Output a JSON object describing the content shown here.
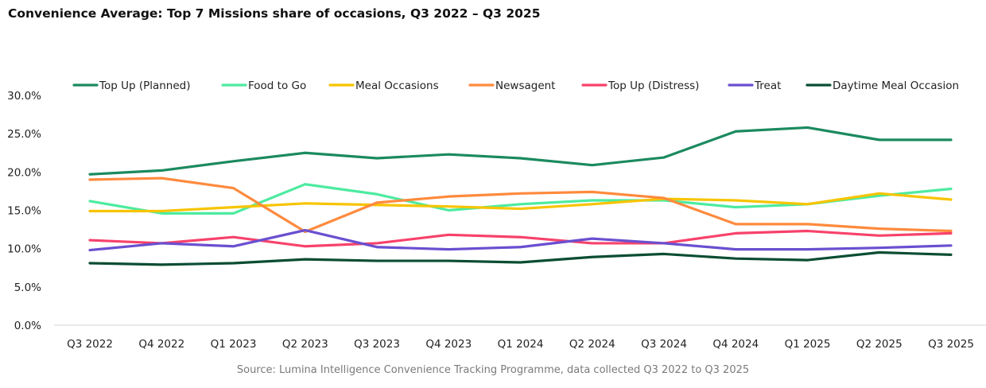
{
  "chart_data": {
    "type": "line",
    "title": "Convenience Average: Top 7 Missions share of occasions, Q3 2022 – Q3 2025",
    "source": "Source: Lumina Intelligence Convenience Tracking Programme, data collected Q3 2022 to Q3 2025",
    "xlabel": "",
    "ylabel": "",
    "ylim": [
      0,
      30
    ],
    "yticks": [
      "0.0%",
      "5.0%",
      "10.0%",
      "15.0%",
      "20.0%",
      "25.0%",
      "30.0%"
    ],
    "ytick_values": [
      0,
      5,
      10,
      15,
      20,
      25,
      30
    ],
    "grid": false,
    "legend_position": "top",
    "categories": [
      "Q3 2022",
      "Q4 2022",
      "Q1 2023",
      "Q2 2023",
      "Q3 2023",
      "Q4 2023",
      "Q1 2024",
      "Q2 2024",
      "Q3 2024",
      "Q4 2024",
      "Q1 2025",
      "Q2 2025",
      "Q3 2025"
    ],
    "series": [
      {
        "name": "Top Up (Planned)",
        "color": "#1b8a5f",
        "values": [
          19.7,
          20.2,
          21.4,
          22.5,
          21.8,
          22.3,
          21.8,
          20.9,
          21.9,
          25.3,
          25.8,
          24.2,
          24.2
        ]
      },
      {
        "name": "Food to Go",
        "color": "#4deba0",
        "values": [
          16.2,
          14.6,
          14.6,
          18.4,
          17.1,
          15.0,
          15.8,
          16.3,
          16.3,
          15.4,
          15.8,
          16.9,
          17.8
        ]
      },
      {
        "name": "Meal Occasions",
        "color": "#f7c400",
        "values": [
          14.9,
          14.9,
          15.4,
          15.9,
          15.7,
          15.5,
          15.2,
          15.8,
          16.5,
          16.3,
          15.8,
          17.2,
          16.4
        ]
      },
      {
        "name": "Newsagent",
        "color": "#ff8a3d",
        "values": [
          19.0,
          19.2,
          17.9,
          12.2,
          16.0,
          16.8,
          17.2,
          17.4,
          16.6,
          13.2,
          13.2,
          12.6,
          12.3
        ]
      },
      {
        "name": "Top Up (Distress)",
        "color": "#f7426b",
        "values": [
          11.1,
          10.7,
          11.5,
          10.3,
          10.7,
          11.8,
          11.5,
          10.7,
          10.7,
          12.0,
          12.3,
          11.7,
          12.0
        ]
      },
      {
        "name": "Treat",
        "color": "#6a4fd0",
        "values": [
          9.8,
          10.7,
          10.3,
          12.4,
          10.2,
          9.9,
          10.2,
          11.3,
          10.7,
          9.9,
          9.9,
          10.1,
          10.4
        ]
      },
      {
        "name": "Daytime Meal Occasion",
        "color": "#0b4d33",
        "values": [
          8.1,
          7.9,
          8.1,
          8.6,
          8.4,
          8.4,
          8.2,
          8.9,
          9.3,
          8.7,
          8.5,
          9.5,
          9.2
        ]
      }
    ]
  }
}
